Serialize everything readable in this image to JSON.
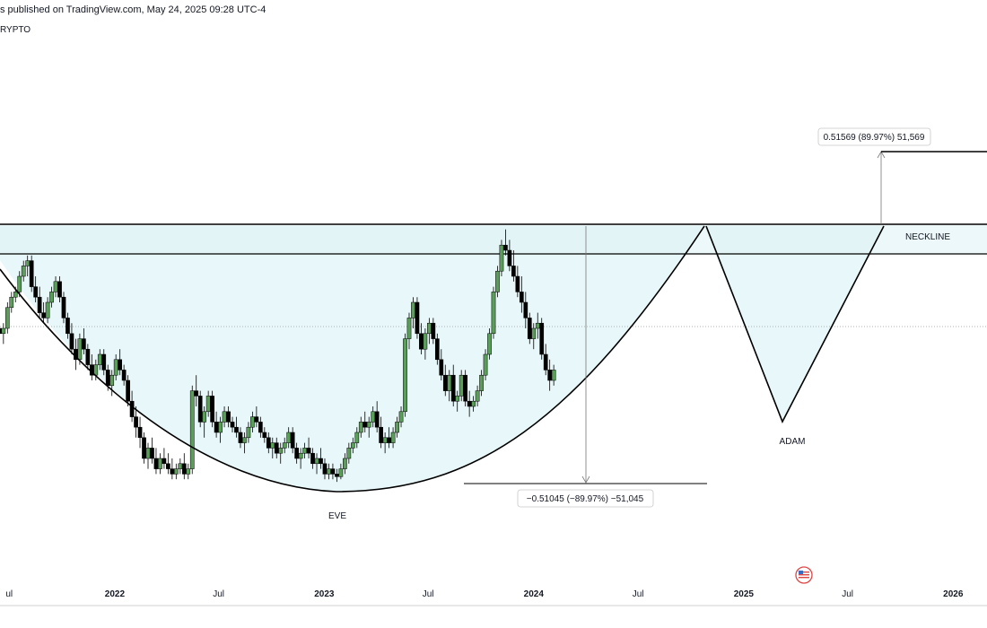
{
  "header": {
    "published": "s published on TradingView.com, May 24, 2025 09:28 UTC-4",
    "symbol_fragment": "RYPTO"
  },
  "chart_data": {
    "type": "candlestick",
    "title": "",
    "x_range": [
      "2021-06-15",
      "2026-03-01"
    ],
    "y_range": {
      "pixel_top_reference_only": true
    },
    "x_tick_labels": [
      {
        "label": "ul",
        "date": "2021-07-01",
        "bold": false
      },
      {
        "label": "2022",
        "date": "2022-01-01",
        "bold": true
      },
      {
        "label": "Jul",
        "date": "2022-07-01",
        "bold": false
      },
      {
        "label": "2023",
        "date": "2023-01-01",
        "bold": true
      },
      {
        "label": "Jul",
        "date": "2023-07-01",
        "bold": false
      },
      {
        "label": "2024",
        "date": "2024-01-01",
        "bold": true
      },
      {
        "label": "Jul",
        "date": "2024-07-01",
        "bold": false
      },
      {
        "label": "2025",
        "date": "2025-01-01",
        "bold": true
      },
      {
        "label": "Jul",
        "date": "2025-07-01",
        "bold": false
      },
      {
        "label": "2026",
        "date": "2026-01-01",
        "bold": true
      }
    ],
    "series": [
      {
        "name": "",
        "interval": "weekly",
        "start_date": "2021-06-14",
        "note": "OHLC values expressed as relative price levels read from the chart (100 = neckline top, 0 = cup low).",
        "ohlc": [
          [
            60,
            66,
            52,
            58
          ],
          [
            58,
            62,
            54,
            60
          ],
          [
            60,
            70,
            58,
            68
          ],
          [
            68,
            74,
            66,
            72
          ],
          [
            72,
            76,
            70,
            74
          ],
          [
            74,
            82,
            72,
            80
          ],
          [
            80,
            86,
            78,
            84
          ],
          [
            84,
            88,
            80,
            86
          ],
          [
            86,
            88,
            74,
            76
          ],
          [
            76,
            80,
            70,
            72
          ],
          [
            72,
            76,
            64,
            66
          ],
          [
            66,
            70,
            62,
            64
          ],
          [
            64,
            72,
            62,
            70
          ],
          [
            70,
            76,
            68,
            74
          ],
          [
            74,
            80,
            72,
            78
          ],
          [
            78,
            80,
            70,
            72
          ],
          [
            72,
            74,
            62,
            64
          ],
          [
            64,
            66,
            56,
            58
          ],
          [
            58,
            62,
            50,
            52
          ],
          [
            52,
            56,
            44,
            48
          ],
          [
            48,
            58,
            46,
            56
          ],
          [
            56,
            60,
            50,
            52
          ],
          [
            52,
            54,
            44,
            46
          ],
          [
            46,
            50,
            40,
            42
          ],
          [
            42,
            48,
            40,
            46
          ],
          [
            46,
            52,
            44,
            50
          ],
          [
            50,
            52,
            42,
            44
          ],
          [
            44,
            46,
            36,
            38
          ],
          [
            38,
            44,
            34,
            42
          ],
          [
            42,
            50,
            40,
            48
          ],
          [
            48,
            52,
            42,
            44
          ],
          [
            44,
            46,
            38,
            40
          ],
          [
            40,
            42,
            30,
            32
          ],
          [
            32,
            36,
            24,
            26
          ],
          [
            26,
            30,
            18,
            22
          ],
          [
            22,
            26,
            14,
            18
          ],
          [
            18,
            20,
            8,
            10
          ],
          [
            10,
            16,
            6,
            14
          ],
          [
            14,
            18,
            8,
            10
          ],
          [
            10,
            14,
            4,
            6
          ],
          [
            6,
            12,
            4,
            10
          ],
          [
            10,
            14,
            6,
            8
          ],
          [
            8,
            12,
            4,
            6
          ],
          [
            6,
            10,
            2,
            4
          ],
          [
            4,
            8,
            2,
            6
          ],
          [
            6,
            10,
            4,
            8
          ],
          [
            8,
            12,
            2,
            4
          ],
          [
            4,
            8,
            2,
            6
          ],
          [
            6,
            38,
            4,
            36
          ],
          [
            36,
            42,
            30,
            34
          ],
          [
            34,
            36,
            22,
            24
          ],
          [
            24,
            30,
            18,
            28
          ],
          [
            28,
            36,
            26,
            34
          ],
          [
            34,
            36,
            22,
            24
          ],
          [
            24,
            28,
            18,
            20
          ],
          [
            20,
            26,
            16,
            24
          ],
          [
            24,
            30,
            22,
            28
          ],
          [
            28,
            30,
            22,
            24
          ],
          [
            24,
            26,
            20,
            22
          ],
          [
            22,
            26,
            18,
            20
          ],
          [
            20,
            22,
            14,
            16
          ],
          [
            16,
            20,
            12,
            18
          ],
          [
            18,
            24,
            16,
            22
          ],
          [
            22,
            28,
            20,
            26
          ],
          [
            26,
            30,
            22,
            24
          ],
          [
            24,
            26,
            18,
            20
          ],
          [
            20,
            22,
            16,
            18
          ],
          [
            18,
            20,
            12,
            14
          ],
          [
            14,
            18,
            10,
            16
          ],
          [
            16,
            18,
            10,
            12
          ],
          [
            12,
            16,
            8,
            14
          ],
          [
            14,
            18,
            12,
            16
          ],
          [
            16,
            22,
            14,
            20
          ],
          [
            20,
            22,
            12,
            14
          ],
          [
            14,
            16,
            8,
            10
          ],
          [
            10,
            14,
            6,
            12
          ],
          [
            12,
            16,
            10,
            14
          ],
          [
            14,
            18,
            10,
            12
          ],
          [
            12,
            14,
            6,
            8
          ],
          [
            8,
            12,
            4,
            10
          ],
          [
            10,
            14,
            6,
            8
          ],
          [
            8,
            10,
            2,
            4
          ],
          [
            4,
            8,
            2,
            6
          ],
          [
            6,
            8,
            2,
            4
          ],
          [
            4,
            6,
            1,
            3
          ],
          [
            3,
            8,
            2,
            6
          ],
          [
            6,
            12,
            4,
            10
          ],
          [
            10,
            16,
            8,
            14
          ],
          [
            14,
            18,
            12,
            16
          ],
          [
            16,
            22,
            14,
            20
          ],
          [
            20,
            26,
            18,
            24
          ],
          [
            24,
            28,
            20,
            22
          ],
          [
            22,
            26,
            18,
            24
          ],
          [
            24,
            30,
            22,
            28
          ],
          [
            28,
            32,
            20,
            22
          ],
          [
            22,
            26,
            14,
            16
          ],
          [
            16,
            20,
            12,
            18
          ],
          [
            18,
            22,
            14,
            16
          ],
          [
            16,
            22,
            14,
            20
          ],
          [
            20,
            26,
            18,
            24
          ],
          [
            24,
            30,
            22,
            28
          ],
          [
            28,
            58,
            26,
            56
          ],
          [
            56,
            66,
            52,
            64
          ],
          [
            64,
            72,
            60,
            70
          ],
          [
            70,
            72,
            56,
            58
          ],
          [
            58,
            62,
            50,
            52
          ],
          [
            52,
            60,
            48,
            58
          ],
          [
            58,
            64,
            54,
            62
          ],
          [
            62,
            64,
            54,
            56
          ],
          [
            56,
            58,
            46,
            48
          ],
          [
            48,
            52,
            40,
            42
          ],
          [
            42,
            46,
            34,
            36
          ],
          [
            36,
            44,
            32,
            42
          ],
          [
            42,
            46,
            30,
            32
          ],
          [
            32,
            36,
            28,
            34
          ],
          [
            34,
            44,
            32,
            42
          ],
          [
            42,
            44,
            30,
            32
          ],
          [
            32,
            36,
            26,
            30
          ],
          [
            30,
            34,
            28,
            32
          ],
          [
            32,
            38,
            30,
            36
          ],
          [
            36,
            44,
            34,
            42
          ],
          [
            42,
            52,
            40,
            50
          ],
          [
            50,
            60,
            48,
            58
          ],
          [
            58,
            76,
            56,
            74
          ],
          [
            74,
            84,
            72,
            82
          ],
          [
            82,
            94,
            80,
            92
          ],
          [
            92,
            98,
            88,
            90
          ],
          [
            90,
            94,
            82,
            84
          ],
          [
            84,
            90,
            78,
            80
          ],
          [
            80,
            84,
            72,
            74
          ],
          [
            74,
            80,
            66,
            70
          ],
          [
            70,
            74,
            60,
            64
          ],
          [
            64,
            66,
            54,
            56
          ],
          [
            56,
            62,
            52,
            60
          ],
          [
            60,
            66,
            56,
            62
          ],
          [
            62,
            64,
            48,
            50
          ],
          [
            50,
            54,
            42,
            44
          ],
          [
            44,
            48,
            36,
            40
          ],
          [
            40,
            46,
            38,
            44
          ]
        ]
      }
    ],
    "annotations": {
      "neckline_label": "NECKLINE",
      "eve_label": "EVE",
      "adam_label": "ADAM",
      "measure_down_label": "−0.51045 (−89.97%) −51,045",
      "measure_up_label": "0.51569 (89.97%) 51,569"
    },
    "grid": false,
    "current_price_line": true,
    "colors": {
      "up": "#5a9e5a",
      "down": "#000000",
      "zone_fill": "#e4f6f8",
      "zone_border": "#000000",
      "guide": "#8a8a8a"
    }
  }
}
